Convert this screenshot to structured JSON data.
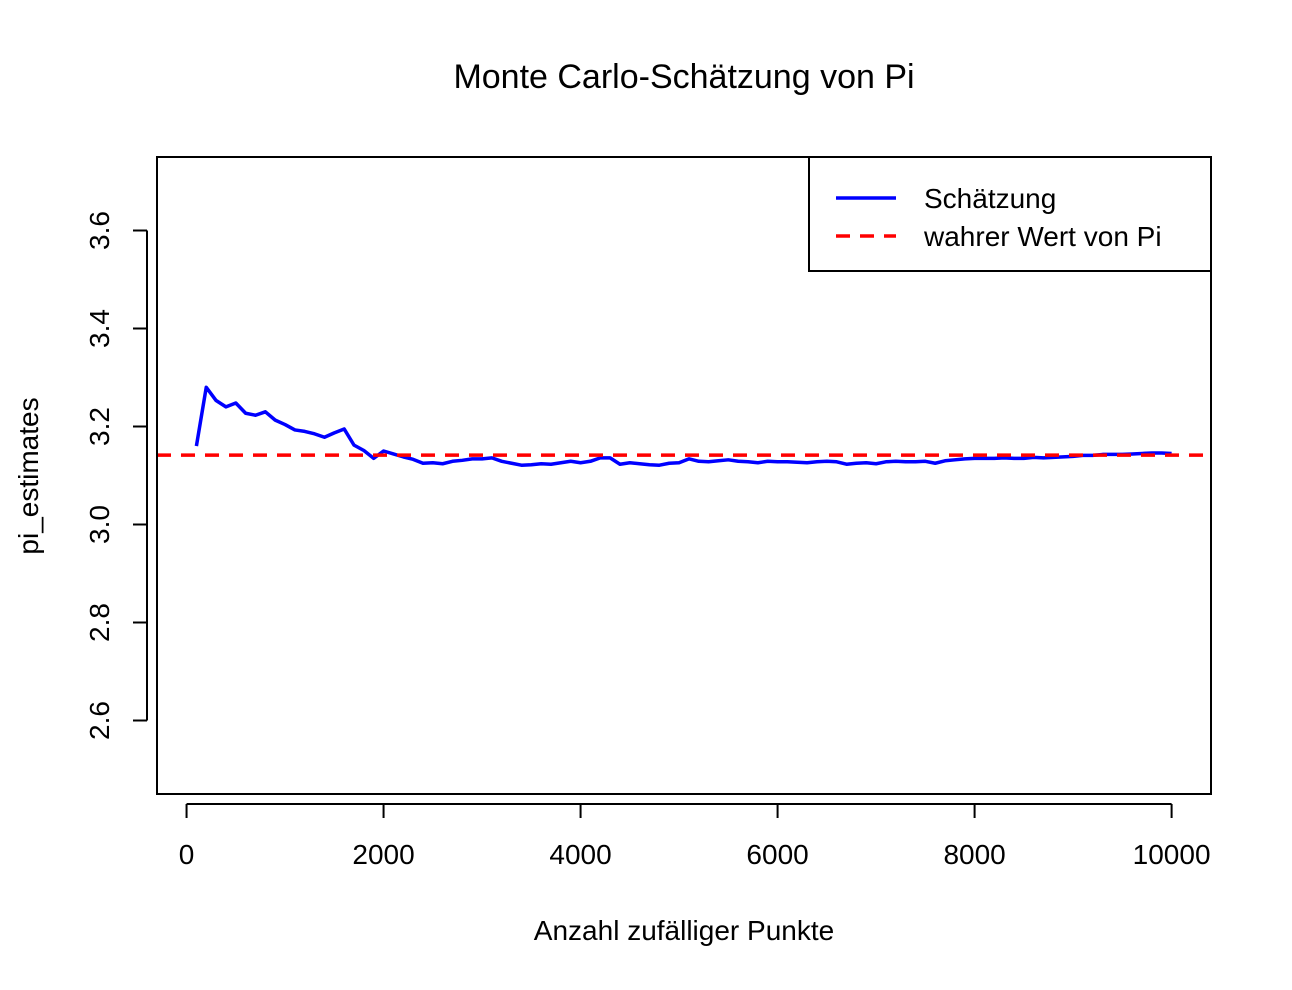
{
  "chart_data": {
    "type": "line",
    "title": "Monte Carlo-Schätzung von Pi",
    "xlabel": "Anzahl zufälliger Punkte",
    "ylabel": "pi_estimates",
    "xlim": [
      -300,
      10400
    ],
    "ylim": [
      2.45,
      3.75
    ],
    "xticks": [
      0,
      2000,
      4000,
      6000,
      8000,
      10000
    ],
    "xtick_labels": [
      "0",
      "2000",
      "4000",
      "6000",
      "8000",
      "10000"
    ],
    "yticks": [
      2.6,
      2.8,
      3.0,
      3.2,
      3.4,
      3.6
    ],
    "ytick_labels": [
      "2.6",
      "2.8",
      "3.0",
      "3.2",
      "3.4",
      "3.6"
    ],
    "grid": false,
    "legend_position": "top-right",
    "series": [
      {
        "name": "Schätzung",
        "color": "#0000ff",
        "style": "solid",
        "x": [
          100,
          200,
          300,
          400,
          500,
          600,
          700,
          800,
          900,
          1000,
          1100,
          1200,
          1300,
          1400,
          1500,
          1600,
          1700,
          1800,
          1900,
          2000,
          2100,
          2200,
          2300,
          2400,
          2500,
          2600,
          2700,
          2800,
          2900,
          3000,
          3100,
          3200,
          3300,
          3400,
          3500,
          3600,
          3700,
          3800,
          3900,
          4000,
          4100,
          4200,
          4300,
          4400,
          4500,
          4600,
          4700,
          4800,
          4900,
          5000,
          5100,
          5200,
          5300,
          5400,
          5500,
          5600,
          5700,
          5800,
          5900,
          6000,
          6100,
          6200,
          6300,
          6400,
          6500,
          6600,
          6700,
          6800,
          6900,
          7000,
          7100,
          7200,
          7300,
          7400,
          7500,
          7600,
          7700,
          7800,
          7900,
          8000,
          8100,
          8200,
          8300,
          8400,
          8500,
          8600,
          8700,
          8800,
          8900,
          9000,
          9100,
          9200,
          9300,
          9400,
          9500,
          9600,
          9700,
          9800,
          9900,
          10000
        ],
        "values": [
          3.16,
          3.28,
          3.253,
          3.24,
          3.248,
          3.227,
          3.223,
          3.23,
          3.213,
          3.204,
          3.193,
          3.19,
          3.185,
          3.178,
          3.187,
          3.195,
          3.162,
          3.151,
          3.135,
          3.15,
          3.144,
          3.138,
          3.133,
          3.125,
          3.126,
          3.124,
          3.129,
          3.131,
          3.134,
          3.134,
          3.136,
          3.129,
          3.125,
          3.121,
          3.122,
          3.124,
          3.123,
          3.126,
          3.129,
          3.126,
          3.129,
          3.136,
          3.136,
          3.123,
          3.126,
          3.124,
          3.122,
          3.121,
          3.125,
          3.126,
          3.134,
          3.129,
          3.128,
          3.13,
          3.132,
          3.129,
          3.128,
          3.126,
          3.129,
          3.128,
          3.128,
          3.127,
          3.126,
          3.128,
          3.129,
          3.128,
          3.123,
          3.125,
          3.126,
          3.124,
          3.128,
          3.129,
          3.128,
          3.128,
          3.129,
          3.125,
          3.13,
          3.132,
          3.134,
          3.135,
          3.135,
          3.135,
          3.136,
          3.135,
          3.135,
          3.137,
          3.136,
          3.137,
          3.138,
          3.139,
          3.141,
          3.141,
          3.143,
          3.143,
          3.143,
          3.144,
          3.145,
          3.146,
          3.146,
          3.145
        ]
      },
      {
        "name": "wahrer Wert von Pi",
        "color": "#ff0000",
        "style": "dashed",
        "hline": 3.14159
      }
    ]
  }
}
